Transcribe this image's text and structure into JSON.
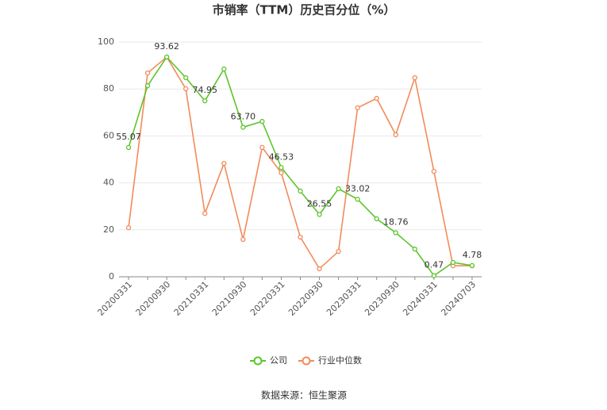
{
  "chart_data": {
    "type": "line",
    "title": "市销率（TTM）历史百分位（%）",
    "categories": [
      "20200331",
      null,
      "20200930",
      null,
      "20210331",
      null,
      "20210930",
      null,
      "20220331",
      null,
      "20220930",
      null,
      "20230331",
      null,
      "20230930",
      null,
      "20240331",
      null,
      "20240703"
    ],
    "series": [
      {
        "name": "公司",
        "color": "#5cc52a",
        "values": [
          55.07,
          81.4,
          93.62,
          84.8,
          74.95,
          88.5,
          63.7,
          66.2,
          46.53,
          36.5,
          26.55,
          37.5,
          33.02,
          24.7,
          18.76,
          11.8,
          0.47,
          6.1,
          4.78
        ],
        "value_labels": [
          "55.07",
          null,
          "93.62",
          null,
          "74.95",
          null,
          "63.70",
          null,
          "46.53",
          null,
          "26.55",
          null,
          "33.02",
          null,
          "18.76",
          null,
          "0.47",
          null,
          "4.78"
        ]
      },
      {
        "name": "行业中位数",
        "color": "#f28b5b",
        "values": [
          20.9,
          86.8,
          93.6,
          80.1,
          27.0,
          48.3,
          15.9,
          55.1,
          44.3,
          16.9,
          3.4,
          10.8,
          72.0,
          76.0,
          60.5,
          84.8,
          44.9,
          4.7,
          4.7
        ]
      }
    ],
    "ylim": [
      0,
      100
    ],
    "yticks": [
      0,
      20,
      40,
      60,
      80,
      100
    ],
    "grid": true,
    "source": "数据来源：恒生聚源"
  }
}
